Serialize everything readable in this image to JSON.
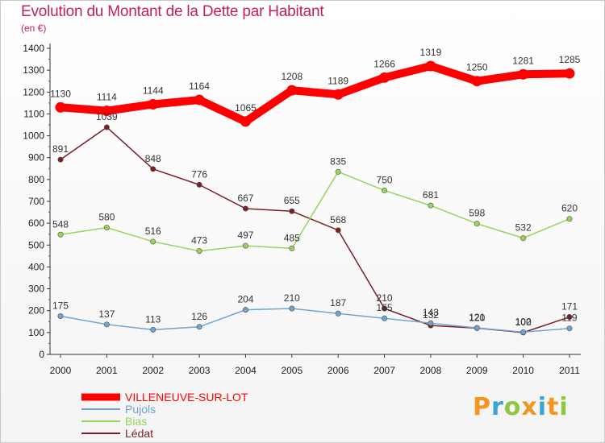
{
  "chart_data": {
    "type": "line",
    "title": "Evolution du Montant de la Dette par Habitant",
    "subtitle": "(en €)",
    "x": [
      "2000",
      "2001",
      "2002",
      "2003",
      "2004",
      "2005",
      "2006",
      "2007",
      "2008",
      "2009",
      "2010",
      "2011"
    ],
    "ylim": [
      0,
      1400
    ],
    "yticks": [
      0,
      100,
      200,
      300,
      400,
      500,
      600,
      700,
      800,
      900,
      1000,
      1100,
      1200,
      1300,
      1400
    ],
    "grid": false,
    "legend_position": "bottom-left",
    "series": [
      {
        "name": "VILLENEUVE-SUR-LOT",
        "color": "#ff0000",
        "values": [
          1130,
          1114,
          1144,
          1164,
          1065,
          1208,
          1189,
          1266,
          1319,
          1250,
          1281,
          1285
        ]
      },
      {
        "name": "Pujols",
        "color": "#6ea3d4",
        "values": [
          175,
          137,
          113,
          126,
          204,
          210,
          187,
          165,
          143,
          121,
          102,
          119
        ]
      },
      {
        "name": "Bias",
        "color": "#96d45a",
        "values": [
          548,
          580,
          516,
          473,
          497,
          485,
          835,
          750,
          681,
          598,
          532,
          620
        ]
      },
      {
        "name": "Lédat",
        "color": "#7b1f24",
        "values": [
          891,
          1039,
          848,
          776,
          667,
          655,
          568,
          210,
          132,
          120,
          100,
          171
        ]
      }
    ]
  },
  "logo": {
    "letters": [
      "P",
      "r",
      "o",
      "x",
      "i",
      "t",
      "i"
    ],
    "colors": [
      "#f7941d",
      "#3aa3d8",
      "#8dc63f",
      "#f7941d",
      "#3aa3d8",
      "#f7941d",
      "#8dc63f"
    ]
  }
}
